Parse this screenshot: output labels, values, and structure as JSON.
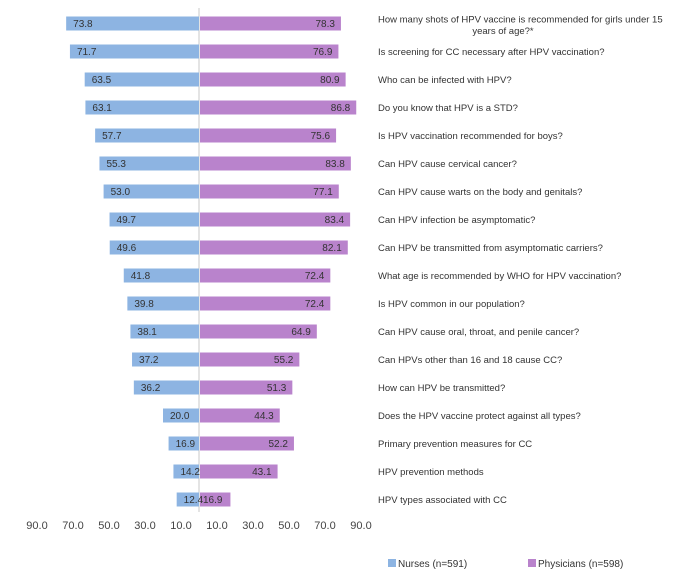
{
  "chart_data": {
    "type": "bar",
    "orientation": "horizontal-diverging",
    "grid": false,
    "legend_position": "bottom-right",
    "categories": [
      [
        "How many shots of HPV vaccine is recommended for girls under 15",
        "years of age?*"
      ],
      [
        "Is screening for CC necessary after HPV vaccination?"
      ],
      [
        "Who can be infected with HPV?"
      ],
      [
        "Do you know that HPV is a STD?"
      ],
      [
        "Is HPV vaccination recommended for boys?"
      ],
      [
        "Can HPV cause cervical cancer?"
      ],
      [
        "Can HPV cause warts on the body and genitals?"
      ],
      [
        "Can HPV infection be asymptomatic?"
      ],
      [
        "Can HPV be transmitted from asymptomatic carriers?"
      ],
      [
        "What age is recommended by WHO for HPV vaccination?"
      ],
      [
        "Is HPV common in our population?"
      ],
      [
        "Can HPV cause oral, throat, and penile cancer?"
      ],
      [
        "Can HPVs other than 16 and 18 cause CC?"
      ],
      [
        "How can HPV be transmitted?"
      ],
      [
        "Does the HPV vaccine protect against all types?"
      ],
      [
        "Primary prevention measures for CC"
      ],
      [
        "HPV prevention methods"
      ],
      [
        "HPV types associated with CC"
      ]
    ],
    "series": [
      {
        "name": "Nurses (n=591)",
        "color": "#8db4e2",
        "side": "left",
        "values": [
          73.8,
          71.7,
          63.5,
          63.1,
          57.7,
          55.3,
          53.0,
          49.7,
          49.6,
          41.8,
          39.8,
          38.1,
          37.2,
          36.2,
          20.0,
          16.9,
          14.2,
          12.4
        ],
        "labels": [
          "73.8",
          "71.7",
          "63.5",
          "63.1",
          "57.7",
          "55.3",
          "53.0",
          "49.7",
          "49.6",
          "41.8",
          "39.8",
          "38.1",
          "37.2",
          "36.2",
          "20.0",
          "16.9",
          "14.2",
          "12.4"
        ]
      },
      {
        "name": "Physicians (n=598)",
        "color": "#b983cc",
        "side": "right",
        "values": [
          78.3,
          76.9,
          80.9,
          86.8,
          75.6,
          83.8,
          77.1,
          83.4,
          82.1,
          72.4,
          72.4,
          64.9,
          55.2,
          51.3,
          44.3,
          52.2,
          43.1,
          16.9
        ],
        "labels": [
          "78.3",
          "76.9",
          "80.9",
          "86.8",
          "75.6",
          "83.8",
          "77.1",
          "83.4",
          "82.1",
          "72.4",
          "72.4",
          "64.9",
          "55.2",
          "51.3",
          "44.3",
          "52.2",
          "43.1",
          "16.9"
        ]
      }
    ],
    "xlim": [
      0,
      90
    ],
    "x_ticks": {
      "left": [
        {
          "value": 90,
          "label": "90.0"
        },
        {
          "value": 70,
          "label": "70.0"
        },
        {
          "value": 50,
          "label": "50.0"
        },
        {
          "value": 30,
          "label": "30.0"
        },
        {
          "value": 10,
          "label": "10.0"
        }
      ],
      "right": [
        {
          "value": 10,
          "label": "10.0"
        },
        {
          "value": 30,
          "label": "30.0"
        },
        {
          "value": 50,
          "label": "50.0"
        },
        {
          "value": 70,
          "label": "70.0"
        },
        {
          "value": 90,
          "label": "90.0"
        }
      ]
    },
    "title": "",
    "xlabel": "",
    "ylabel": ""
  }
}
